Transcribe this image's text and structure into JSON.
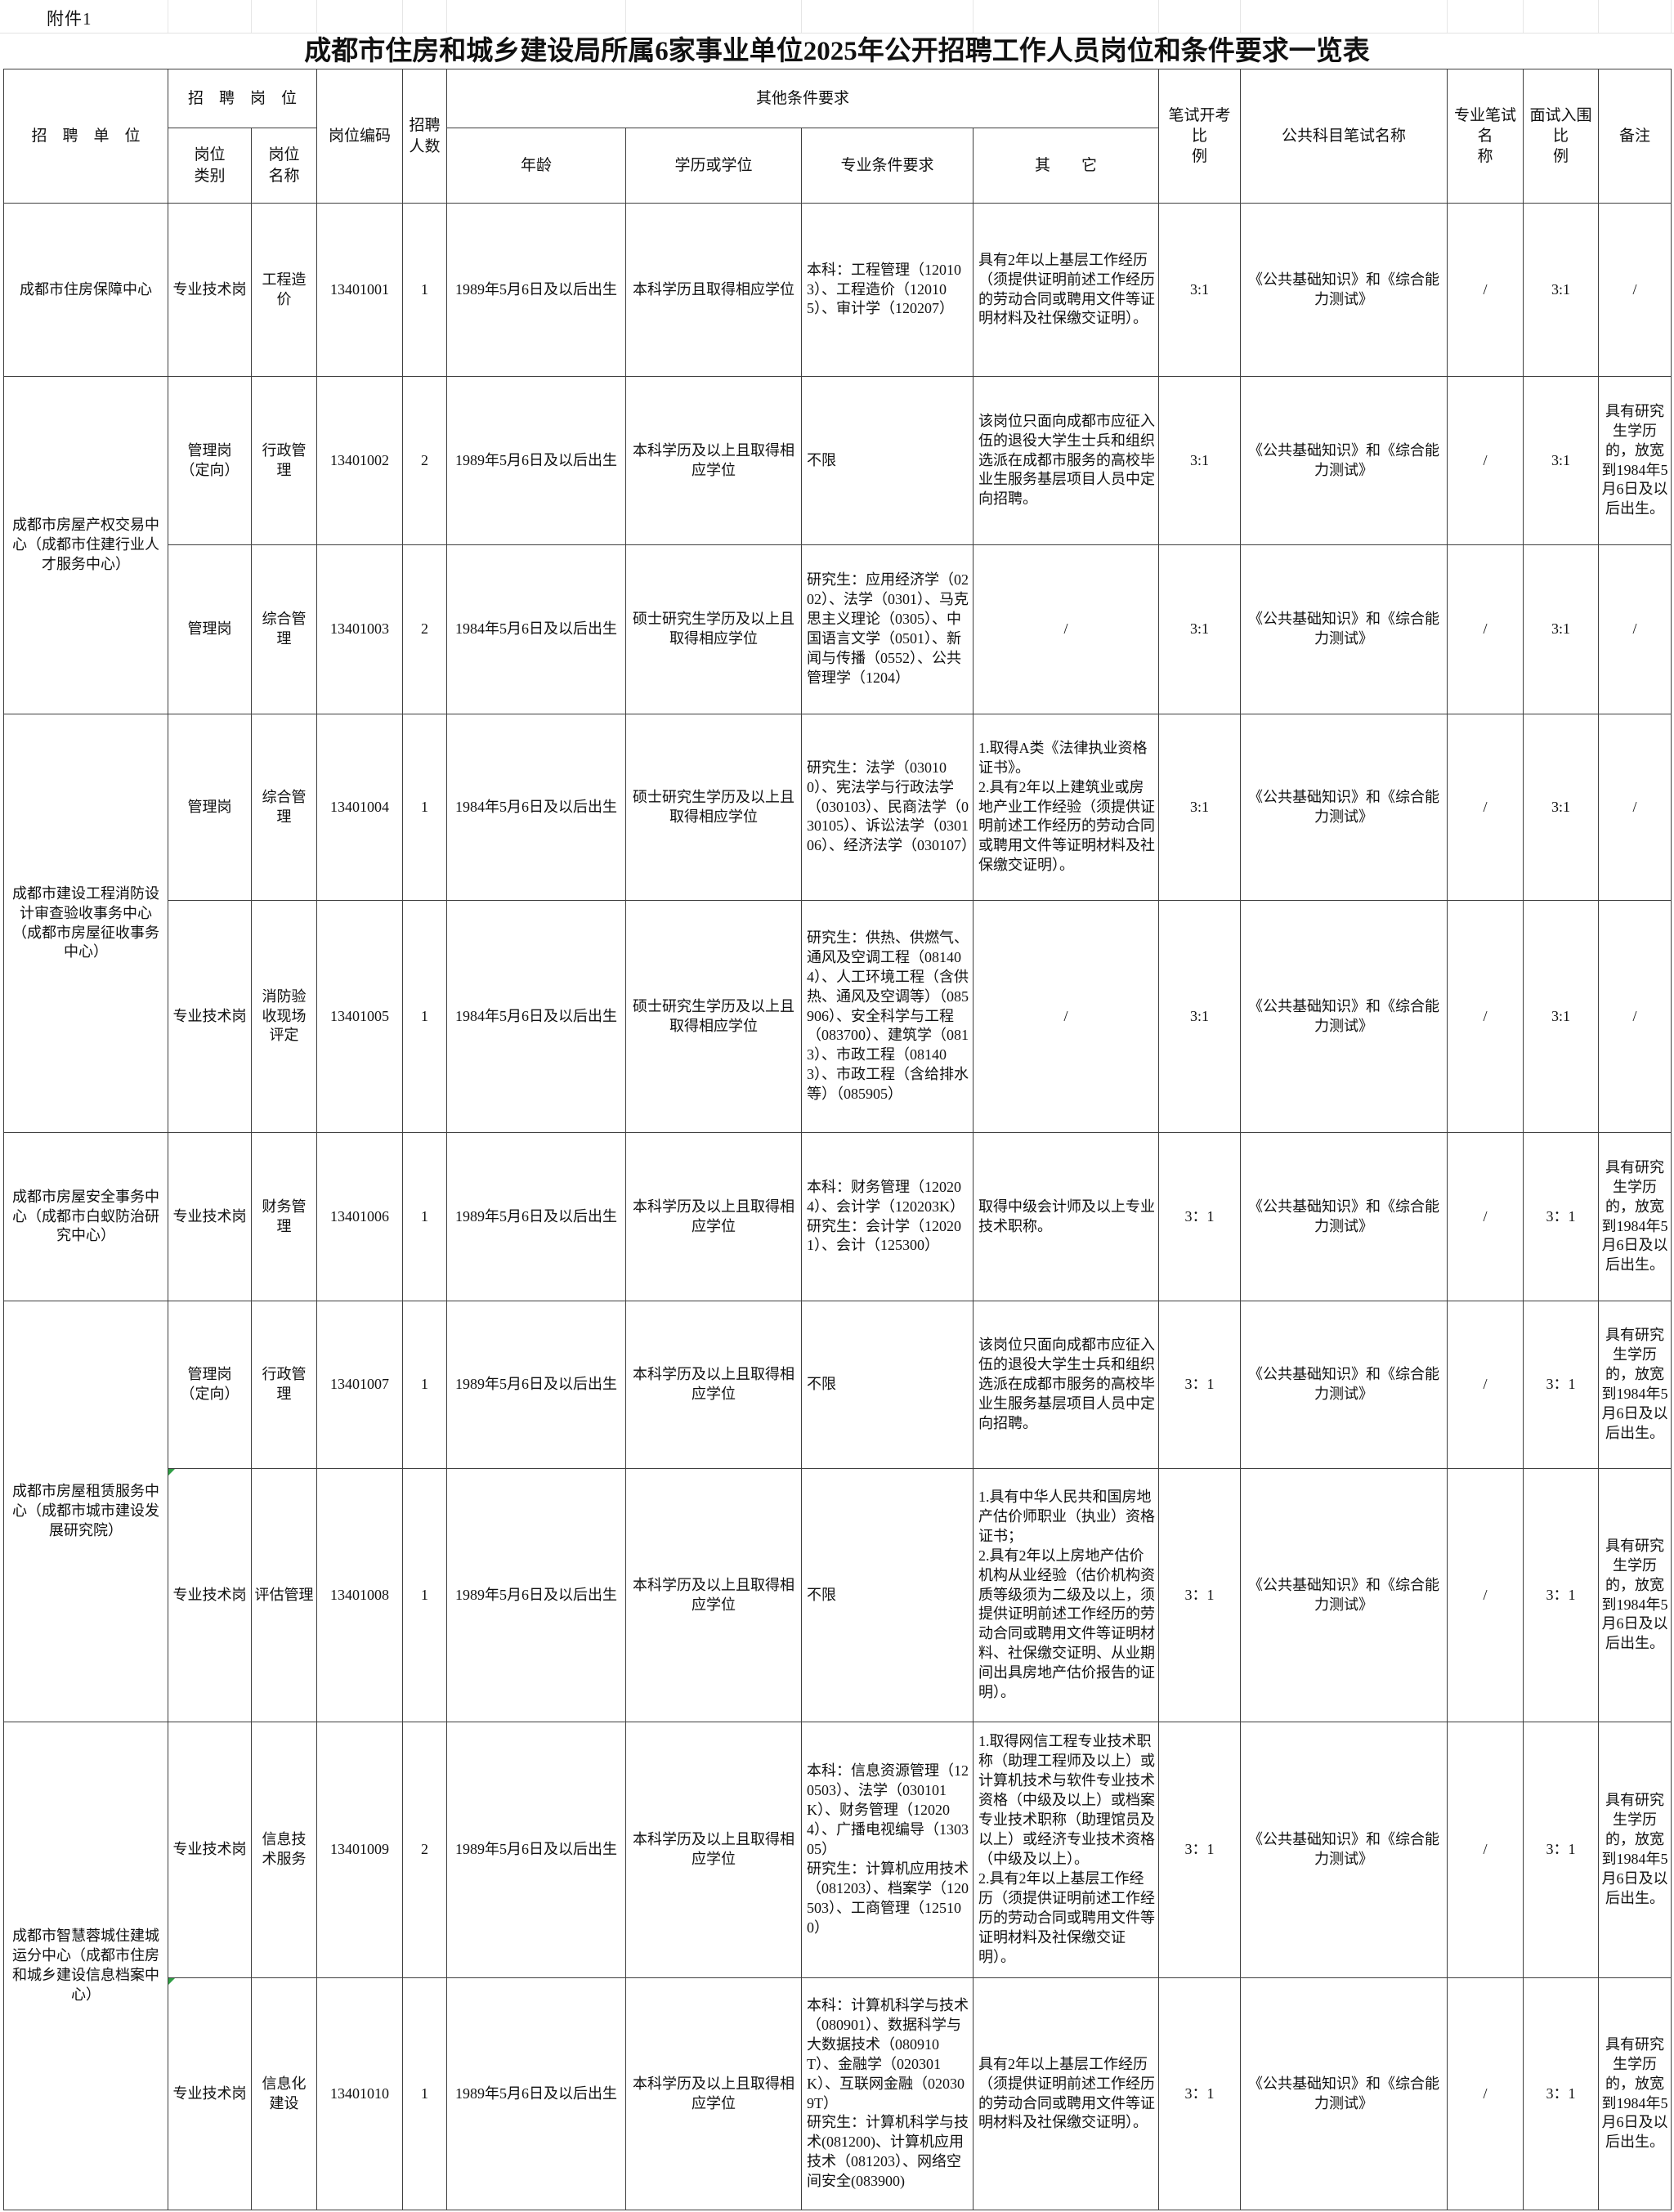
{
  "attachment": "附件1",
  "title": "成都市住房和城乡建设局所属6家事业单位2025年公开招聘工作人员岗位和条件要求一览表",
  "header": {
    "unit": "招　聘　单　位",
    "post_group": "招　聘　岗　位",
    "post_type": "岗位\n类别",
    "post_name": "岗位\n名称",
    "code": "岗位编码",
    "count": "招聘\n人数",
    "other_group": "其他条件要求",
    "age": "年龄",
    "education": "学历或学位",
    "major": "专业条件要求",
    "other": "其　　它",
    "written_ratio": "笔试开考比\n例",
    "public_subject": "公共科目笔试名称",
    "professional_test": "专业笔试名\n称",
    "interview_ratio": "面试入围比\n例",
    "remark": "备注"
  },
  "units": [
    {
      "name": "成都市住房保障中心",
      "span": 1
    },
    {
      "name": "成都市房屋产权交易中心（成都市住建行业人才服务中心）",
      "span": 2
    },
    {
      "name": "成都市建设工程消防设计审查验收事务中心（成都市房屋征收事务中心）",
      "span": 2
    },
    {
      "name": "成都市房屋安全事务中心（成都市白蚁防治研究中心）",
      "span": 1
    },
    {
      "name": "成都市房屋租赁服务中心（成都市城市建设发展研究院）",
      "span": 2
    },
    {
      "name": "成都市智慧蓉城住建城运分中心（成都市住房和城乡建设信息档案中心）",
      "span": 2
    }
  ],
  "rows": [
    {
      "post_type": "专业技术岗",
      "post_name": "工程造\n价",
      "code": "13401001",
      "count": "1",
      "age": "1989年5月6日及以后出生",
      "education": "本科学历且取得相应学位",
      "major": "本科：工程管理（120103）、工程造价（120105）、审计学（120207）",
      "other": "具有2年以上基层工作经历（须提供证明前述工作经历的劳动合同或聘用文件等证明材料及社保缴交证明）。",
      "written_ratio": "3:1",
      "public_subject": "《公共基础知识》和《综合能力测试》",
      "professional_test": "/",
      "interview_ratio": "3:1",
      "remark": "/",
      "corner_mark": false
    },
    {
      "post_type": "管理岗\n（定向）",
      "post_name": "行政管\n理",
      "code": "13401002",
      "count": "2",
      "age": "1989年5月6日及以后出生",
      "education": "本科学历及以上且取得相应学位",
      "major": "不限",
      "other": "该岗位只面向成都市应征入伍的退役大学生士兵和组织选派在成都市服务的高校毕业生服务基层项目人员中定向招聘。",
      "written_ratio": "3:1",
      "public_subject": "《公共基础知识》和《综合能力测试》",
      "professional_test": "/",
      "interview_ratio": "3:1",
      "remark": "具有研究生学历的，放宽到1984年5月6日及以后出生。",
      "corner_mark": false
    },
    {
      "post_type": "管理岗",
      "post_name": "综合管\n理",
      "code": "13401003",
      "count": "2",
      "age": "1984年5月6日及以后出生",
      "education": "硕士研究生学历及以上且取得相应学位",
      "major": "研究生：应用经济学（0202）、法学（0301）、马克思主义理论（0305）、中国语言文学（0501）、新闻与传播（0552）、公共管理学（1204）",
      "other": "/",
      "written_ratio": "3:1",
      "public_subject": "《公共基础知识》和《综合能力测试》",
      "professional_test": "/",
      "interview_ratio": "3:1",
      "remark": "/",
      "corner_mark": false
    },
    {
      "post_type": "管理岗",
      "post_name": "综合管\n理",
      "code": "13401004",
      "count": "1",
      "age": "1984年5月6日及以后出生",
      "education": "硕士研究生学历及以上且取得相应学位",
      "major": "研究生：法学（030100）、宪法学与行政法学（030103）、民商法学（030105）、诉讼法学（030106）、经济法学（030107）",
      "other": "1.取得A类《法律执业资格证书》。\n2.具有2年以上建筑业或房地产业工作经验（须提供证明前述工作经历的劳动合同或聘用文件等证明材料及社保缴交证明）。",
      "written_ratio": "3:1",
      "public_subject": "《公共基础知识》和《综合能力测试》",
      "professional_test": "/",
      "interview_ratio": "3:1",
      "remark": "/",
      "corner_mark": false
    },
    {
      "post_type": "专业技术岗",
      "post_name": "消防验\n收现场\n评定",
      "code": "13401005",
      "count": "1",
      "age": "1984年5月6日及以后出生",
      "education": "硕士研究生学历及以上且取得相应学位",
      "major": "研究生：供热、供燃气、通风及空调工程（081404）、人工环境工程（含供热、通风及空调等）（085906）、安全科学与工程（083700）、建筑学（0813）、市政工程（081403）、市政工程（含给排水等）（085905）",
      "other": "/",
      "written_ratio": "3:1",
      "public_subject": "《公共基础知识》和《综合能力测试》",
      "professional_test": "/",
      "interview_ratio": "3:1",
      "remark": "/",
      "corner_mark": false
    },
    {
      "post_type": "专业技术岗",
      "post_name": "财务管\n理",
      "code": "13401006",
      "count": "1",
      "age": "1989年5月6日及以后出生",
      "education": "本科学历及以上且取得相应学位",
      "major": "本科：财务管理（120204）、会计学（120203K）\n研究生：会计学（120201）、会计（125300）",
      "other": "取得中级会计师及以上专业技术职称。",
      "written_ratio": "3：1",
      "public_subject": "《公共基础知识》和《综合能力测试》",
      "professional_test": "/",
      "interview_ratio": "3：1",
      "remark": "具有研究生学历的，放宽到1984年5月6日及以后出生。",
      "corner_mark": false
    },
    {
      "post_type": "管理岗\n（定向）",
      "post_name": "行政管\n理",
      "code": "13401007",
      "count": "1",
      "age": "1989年5月6日及以后出生",
      "education": "本科学历及以上且取得相应学位",
      "major": "不限",
      "other": "该岗位只面向成都市应征入伍的退役大学生士兵和组织选派在成都市服务的高校毕业生服务基层项目人员中定向招聘。",
      "written_ratio": "3：1",
      "public_subject": "《公共基础知识》和《综合能力测试》",
      "professional_test": "/",
      "interview_ratio": "3：1",
      "remark": "具有研究生学历的，放宽到1984年5月6日及以后出生。",
      "corner_mark": false
    },
    {
      "post_type": "专业技术岗",
      "post_name": "评估管理",
      "code": "13401008",
      "count": "1",
      "age": "1989年5月6日及以后出生",
      "education": "本科学历及以上且取得相应学位",
      "major": "不限",
      "other": "1.具有中华人民共和国房地产估价师职业（执业）资格证书；\n2.具有2年以上房地产估价机构从业经验（估价机构资质等级须为二级及以上，须提供证明前述工作经历的劳动合同或聘用文件等证明材料、社保缴交证明、从业期间出具房地产估价报告的证明）。",
      "written_ratio": "3：1",
      "public_subject": "《公共基础知识》和《综合能力测试》",
      "professional_test": "/",
      "interview_ratio": "3：1",
      "remark": "具有研究生学历的，放宽到1984年5月6日及以后出生。",
      "corner_mark": true
    },
    {
      "post_type": "专业技术岗",
      "post_name": "信息技\n术服务",
      "code": "13401009",
      "count": "2",
      "age": "1989年5月6日及以后出生",
      "education": "本科学历及以上且取得相应学位",
      "major": "本科：信息资源管理（120503）、法学（030101K）、财务管理（120204）、广播电视编导（130305）\n研究生：计算机应用技术（081203）、档案学（120503）、工商管理（125100）",
      "other": "1.取得网信工程专业技术职称（助理工程师及以上）或计算机技术与软件专业技术资格（中级及以上）或档案专业技术职称（助理馆员及以上）或经济专业技术资格（中级及以上）。\n2.具有2年以上基层工作经历（须提供证明前述工作经历的劳动合同或聘用文件等证明材料及社保缴交证明）。",
      "written_ratio": "3：1",
      "public_subject": "《公共基础知识》和《综合能力测试》",
      "professional_test": "/",
      "interview_ratio": "3：1",
      "remark": "具有研究生学历的，放宽到1984年5月6日及以后出生。",
      "corner_mark": false
    },
    {
      "post_type": "专业技术岗",
      "post_name": "信息化\n建设",
      "code": "13401010",
      "count": "1",
      "age": "1989年5月6日及以后出生",
      "education": "本科学历及以上且取得相应学位",
      "major": "本科：计算机科学与技术（080901）、数据科学与大数据技术（080910T）、金融学（020301K）、互联网金融（020309T）\n研究生：计算机科学与技术(081200)、计算机应用技术（081203）、网络空间安全(083900)",
      "other": "具有2年以上基层工作经历（须提供证明前述工作经历的劳动合同或聘用文件等证明材料及社保缴交证明）。",
      "written_ratio": "3：1",
      "public_subject": "《公共基础知识》和《综合能力测试》",
      "professional_test": "/",
      "interview_ratio": "3：1",
      "remark": "具有研究生学历的，放宽到1984年5月6日及以后出生。",
      "corner_mark": true
    }
  ]
}
